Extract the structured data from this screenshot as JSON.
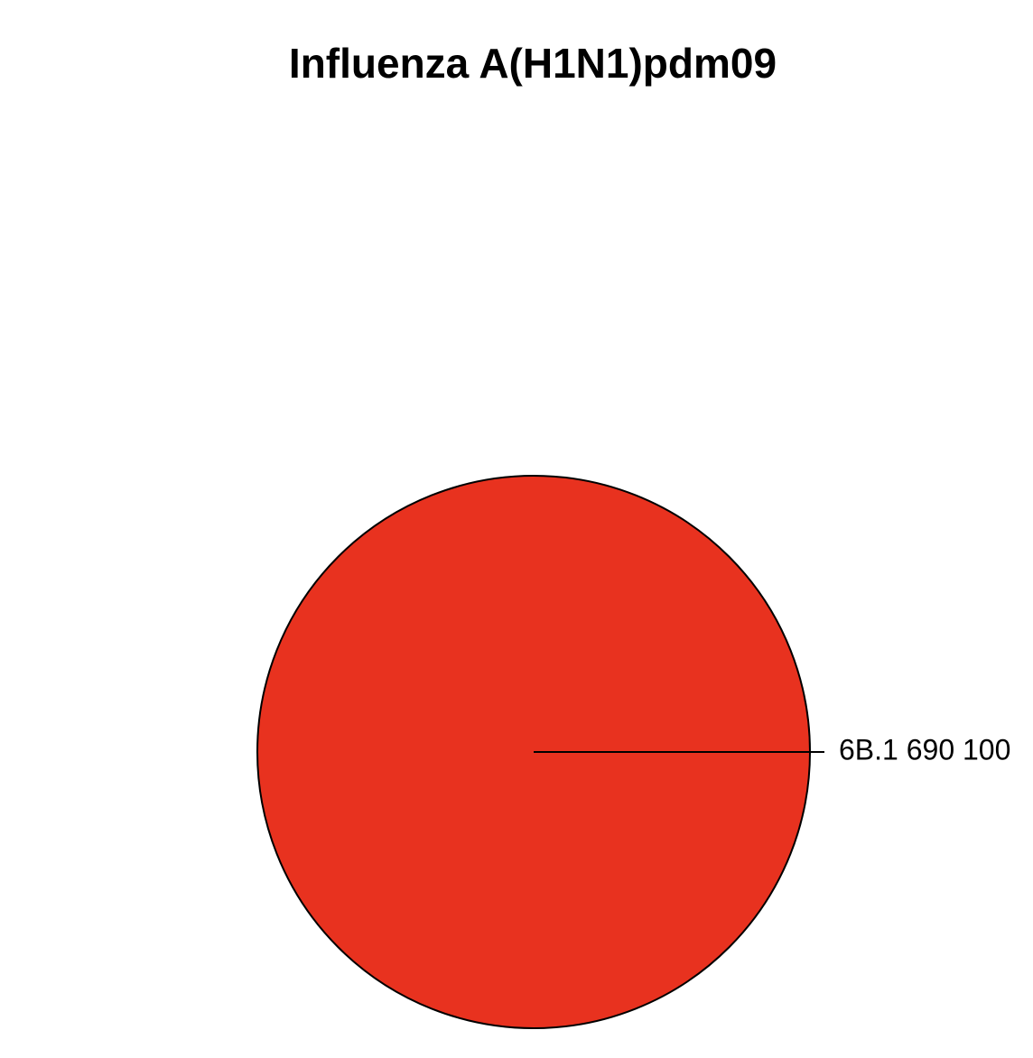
{
  "chart_data": {
    "type": "pie",
    "title": "Influenza A(H1N1)pdm09",
    "slices": [
      {
        "label": "6B.1 690 100",
        "value": 690,
        "percent": 100,
        "color": "#E8321F"
      }
    ]
  }
}
